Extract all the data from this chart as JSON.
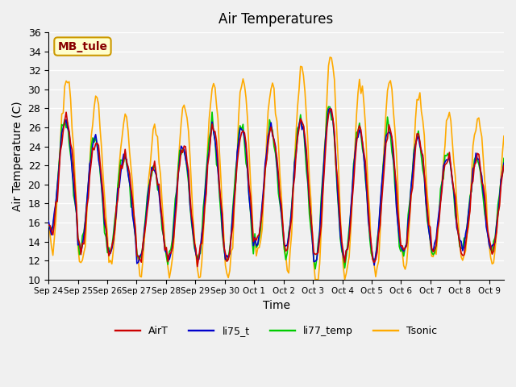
{
  "title": "Air Temperatures",
  "xlabel": "Time",
  "ylabel": "Air Temperature (C)",
  "ylim": [
    10,
    36
  ],
  "yticks": [
    10,
    12,
    14,
    16,
    18,
    20,
    22,
    24,
    26,
    28,
    30,
    32,
    34,
    36
  ],
  "annotation_text": "MB_tule",
  "annotation_bg": "#ffffcc",
  "annotation_border": "#cc9900",
  "annotation_text_color": "#880000",
  "colors": {
    "AirT": "#cc0000",
    "li75_t": "#0000cc",
    "li77_temp": "#00cc00",
    "Tsonic": "#ffaa00"
  },
  "legend_labels": [
    "AirT",
    "li75_t",
    "li77_temp",
    "Tsonic"
  ],
  "xtick_labels": [
    "Sep 24",
    "Sep 25",
    "Sep 26",
    "Sep 27",
    "Sep 28",
    "Sep 29",
    "Sep 30",
    "Oct 1",
    "Oct 2",
    "Oct 3",
    "Oct 4",
    "Oct 5",
    "Oct 6",
    "Oct 7",
    "Oct 8",
    "Oct 9"
  ],
  "bg_color": "#f0f0f0",
  "plot_bg_color": "#f0f0f0",
  "grid_color": "#ffffff",
  "linewidth": 1.2
}
